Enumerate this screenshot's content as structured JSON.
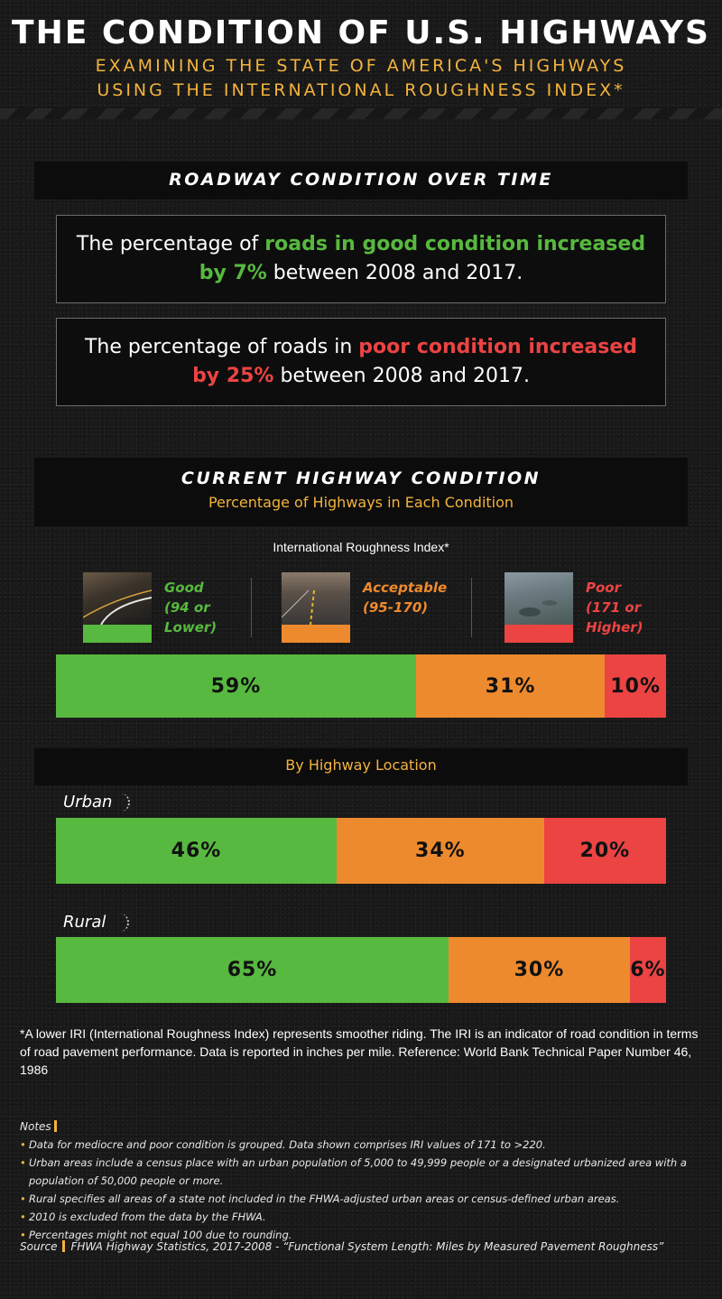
{
  "header": {
    "title": "THE CONDITION OF U.S. HIGHWAYS",
    "subtitle_line1": "EXAMINING THE STATE OF AMERICA'S HIGHWAYS",
    "subtitle_line2": "USING THE INTERNATIONAL ROUGHNESS INDEX*"
  },
  "section1": {
    "title": "ROADWAY CONDITION OVER TIME",
    "stat_good": {
      "prefix": "The percentage of ",
      "highlight": "roads in good condition increased by 7%",
      "suffix": " between 2008 and 2017."
    },
    "stat_poor": {
      "prefix": "The percentage of roads in ",
      "highlight": "poor condition increased by 25%",
      "suffix": " between 2008 and 2017."
    }
  },
  "section2": {
    "title": "CURRENT HIGHWAY CONDITION",
    "subtitle": "Percentage of Highways in Each Condition",
    "iri_label": "International Roughness Index*"
  },
  "legend": [
    {
      "label": "Good\n(94 or\nLower)",
      "color": "#57b93f"
    },
    {
      "label": "Acceptable\n(95-170)",
      "color": "#ee8a2e"
    },
    {
      "label": "Poor\n(171 or\nHigher)",
      "color": "#ec4343"
    }
  ],
  "section3": {
    "title": "By Highway Location",
    "urban_label": "Urban",
    "rural_label": "Rural"
  },
  "chart_data": [
    {
      "type": "bar",
      "orientation": "stacked-horizontal",
      "title": "",
      "categories": [
        "Good",
        "Acceptable",
        "Poor"
      ],
      "values": [
        59,
        31,
        10
      ],
      "labels": [
        "59%",
        "31%",
        "10%"
      ],
      "colors": [
        "#57b93f",
        "#ee8a2e",
        "#ec4343"
      ]
    },
    {
      "type": "bar",
      "orientation": "stacked-horizontal",
      "title": "Urban",
      "categories": [
        "Good",
        "Acceptable",
        "Poor"
      ],
      "values": [
        46,
        34,
        20
      ],
      "labels": [
        "46%",
        "34%",
        "20%"
      ],
      "colors": [
        "#57b93f",
        "#ee8a2e",
        "#ec4343"
      ]
    },
    {
      "type": "bar",
      "orientation": "stacked-horizontal",
      "title": "Rural",
      "categories": [
        "Good",
        "Acceptable",
        "Poor"
      ],
      "values": [
        65,
        30,
        6
      ],
      "labels": [
        "65%",
        "30%",
        "6%"
      ],
      "colors": [
        "#57b93f",
        "#ee8a2e",
        "#ec4343"
      ]
    }
  ],
  "footnote": "*A lower IRI (International Roughness Index) represents smoother riding. The IRI is an indicator of road condition in terms of road pavement performance. Data is reported in inches per mile. Reference: World Bank Technical Paper Number 46, 1986",
  "notes": {
    "title": "Notes",
    "items": [
      "Data for mediocre and poor condition is grouped. Data shown comprises IRI values of 171 to >220.",
      "Urban areas include a census place with an urban population of 5,000 to 49,999 people or a designated urbanized area with a population of 50,000 people or more.",
      "Rural specifies all areas of a state not included in the FHWA-adjusted urban areas or census-defined urban areas.",
      "2010 is excluded from the data by the FHWA.",
      "Percentages might not equal 100 due to rounding."
    ]
  },
  "source": {
    "label": "Source",
    "text": "FHWA Highway Statistics, 2017-2008 - “Functional System Length: Miles by Measured Pavement Roughness”"
  }
}
